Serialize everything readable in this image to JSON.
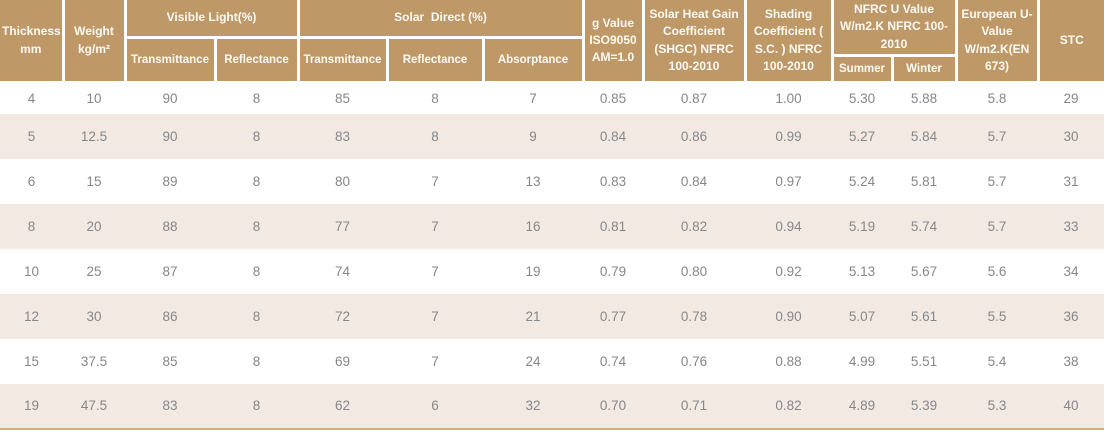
{
  "colors": {
    "header_bg": "#bf9868",
    "header_text": "#fdfaf4",
    "row_bg": "#ffffff",
    "row_alt_bg": "#f2e9e3",
    "data_text": "#85878a",
    "bottom_border": "#cdaf80"
  },
  "table": {
    "header": {
      "thickness": "Thickness mm",
      "weight": "Weight kg/m²",
      "visible_light": "Visible Light(%)",
      "solar_direct": "Solar  Direct (%)",
      "visible_light_sub": [
        "Transmittance",
        "Reflectance"
      ],
      "solar_direct_sub": [
        "Transmittance",
        "Reflectance",
        "Absorptance"
      ],
      "g_value": "g Value ISO9050 AM=1.0",
      "shgc": "Solar Heat Gain Coefficient (SHGC) NFRC 100-2010",
      "shading_coefficient": "Shading Coefficient ( S.C. ) NFRC 100-2010",
      "nfrc_u_value": "NFRC U Value W/m2.K NFRC 100-2010",
      "nfrc_u_value_sub": [
        "Summer",
        "Winter"
      ],
      "european_u_value": "European U-Value W/m2.K(EN 673)",
      "stc": "STC"
    },
    "rows": [
      [
        "4",
        "10",
        "90",
        "8",
        "85",
        "8",
        "7",
        "0.85",
        "0.87",
        "1.00",
        "5.30",
        "5.88",
        "5.8",
        "29"
      ],
      [
        "5",
        "12.5",
        "90",
        "8",
        "83",
        "8",
        "9",
        "0.84",
        "0.86",
        "0.99",
        "5.27",
        "5.84",
        "5.7",
        "30"
      ],
      [
        "6",
        "15",
        "89",
        "8",
        "80",
        "7",
        "13",
        "0.83",
        "0.84",
        "0.97",
        "5.24",
        "5.81",
        "5.7",
        "31"
      ],
      [
        "8",
        "20",
        "88",
        "8",
        "77",
        "7",
        "16",
        "0.81",
        "0.82",
        "0.94",
        "5.19",
        "5.74",
        "5.7",
        "33"
      ],
      [
        "10",
        "25",
        "87",
        "8",
        "74",
        "7",
        "19",
        "0.79",
        "0.80",
        "0.92",
        "5.13",
        "5.67",
        "5.6",
        "34"
      ],
      [
        "12",
        "30",
        "86",
        "8",
        "72",
        "7",
        "21",
        "0.77",
        "0.78",
        "0.90",
        "5.07",
        "5.61",
        "5.5",
        "36"
      ],
      [
        "15",
        "37.5",
        "85",
        "8",
        "69",
        "7",
        "24",
        "0.74",
        "0.76",
        "0.88",
        "4.99",
        "5.51",
        "5.4",
        "38"
      ],
      [
        "19",
        "47.5",
        "83",
        "8",
        "62",
        "6",
        "32",
        "0.70",
        "0.71",
        "0.82",
        "4.89",
        "5.39",
        "5.3",
        "40"
      ]
    ]
  }
}
